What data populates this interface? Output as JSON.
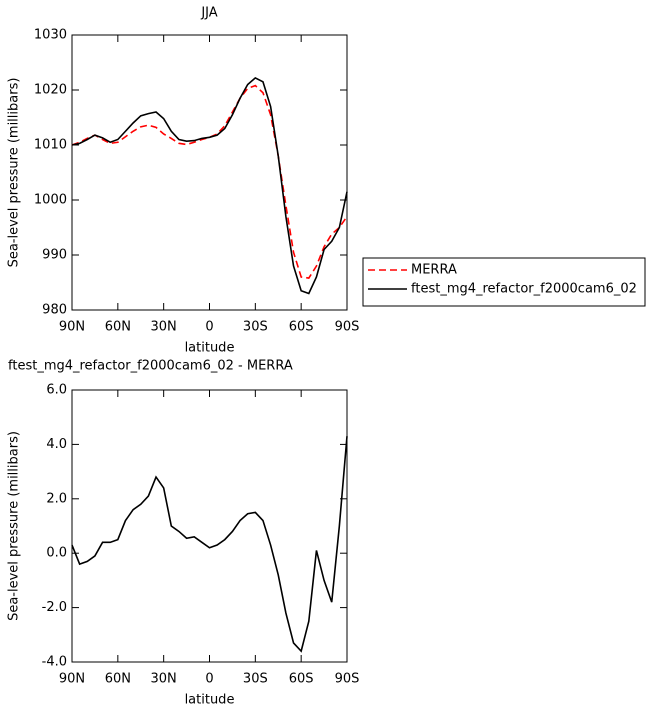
{
  "chart_data": [
    {
      "type": "line",
      "title": "JJA",
      "xlabel": "latitude",
      "ylabel": "Sea-level pressure (millibars)",
      "x": [
        90,
        85,
        80,
        75,
        70,
        65,
        60,
        55,
        50,
        45,
        40,
        35,
        30,
        25,
        20,
        15,
        10,
        5,
        0,
        -5,
        -10,
        -15,
        -20,
        -25,
        -30,
        -35,
        -40,
        -45,
        -50,
        -55,
        -60,
        -65,
        -70,
        -75,
        -80,
        -85,
        -90
      ],
      "series": [
        {
          "name": "MERRA",
          "color": "#ff0000",
          "dash": true,
          "values": [
            1010,
            1010.5,
            1011.2,
            1011.8,
            1011,
            1010.3,
            1010.5,
            1011.5,
            1012.5,
            1013.3,
            1013.6,
            1013.2,
            1012,
            1011.2,
            1010.3,
            1010.1,
            1010.5,
            1011,
            1011.4,
            1012,
            1013.5,
            1016,
            1018.5,
            1020.3,
            1020.8,
            1019.5,
            1015.5,
            1008,
            999,
            990.5,
            986,
            985.8,
            988,
            991.5,
            993.8,
            995,
            997
          ]
        },
        {
          "name": "ftest_mg4_refactor_f2000cam6_02",
          "color": "#000000",
          "dash": false,
          "values": [
            1010,
            1010.3,
            1011,
            1011.8,
            1011.3,
            1010.5,
            1011,
            1012.5,
            1014,
            1015.3,
            1015.7,
            1016,
            1014.8,
            1012.5,
            1011,
            1010.7,
            1010.8,
            1011.2,
            1011.4,
            1011.8,
            1013,
            1015.5,
            1018.5,
            1021,
            1022.2,
            1021.5,
            1017,
            1008,
            997,
            988,
            983.5,
            983,
            986,
            991,
            992.5,
            995,
            1001.5
          ]
        }
      ],
      "xlim": [
        90,
        -90
      ],
      "xticks": [
        {
          "value": 90,
          "label": "90N"
        },
        {
          "value": 60,
          "label": "60N"
        },
        {
          "value": 30,
          "label": "30N"
        },
        0,
        {
          "value": -30,
          "label": "30S"
        },
        {
          "value": -60,
          "label": "60S"
        },
        {
          "value": -90,
          "label": "90S"
        }
      ],
      "ylim": [
        980,
        1030
      ],
      "yticks": [
        980,
        990,
        1000,
        1010,
        1020,
        1030
      ],
      "legend": "right"
    },
    {
      "type": "line",
      "title": "ftest_mg4_refactor_f2000cam6_02 - MERRA",
      "xlabel": "latitude",
      "ylabel": "Sea-level pressure (millibars)",
      "x": [
        90,
        85,
        80,
        75,
        70,
        65,
        60,
        55,
        50,
        45,
        40,
        35,
        30,
        25,
        20,
        15,
        10,
        5,
        0,
        -5,
        -10,
        -15,
        -20,
        -25,
        -30,
        -35,
        -40,
        -45,
        -50,
        -55,
        -60,
        -65,
        -70,
        -75,
        -80,
        -85,
        -90
      ],
      "values": [
        0.3,
        -0.4,
        -0.3,
        -0.1,
        0.4,
        0.4,
        0.5,
        1.2,
        1.6,
        1.8,
        2.1,
        2.8,
        2.4,
        1.0,
        0.8,
        0.55,
        0.6,
        0.4,
        0.2,
        0.3,
        0.5,
        0.8,
        1.2,
        1.45,
        1.5,
        1.2,
        0.3,
        -0.8,
        -2.2,
        -3.3,
        -3.6,
        -2.5,
        0.1,
        -1.0,
        -1.8,
        1.0,
        4.3
      ],
      "color": "#000000",
      "xlim": [
        90,
        -90
      ],
      "xticks": [
        {
          "value": 90,
          "label": "90N"
        },
        {
          "value": 60,
          "label": "60N"
        },
        {
          "value": 30,
          "label": "30N"
        },
        0,
        {
          "value": -30,
          "label": "30S"
        },
        {
          "value": -60,
          "label": "60S"
        },
        {
          "value": -90,
          "label": "90S"
        }
      ],
      "ylim": [
        -4,
        6
      ],
      "yticks": [
        {
          "value": -4,
          "label": "-4.0"
        },
        {
          "value": -2,
          "label": "-2.0"
        },
        {
          "value": 0,
          "label": "0.0"
        },
        {
          "value": 2,
          "label": "2.0"
        },
        {
          "value": 4,
          "label": "4.0"
        },
        {
          "value": 6,
          "label": "6.0"
        }
      ]
    }
  ]
}
